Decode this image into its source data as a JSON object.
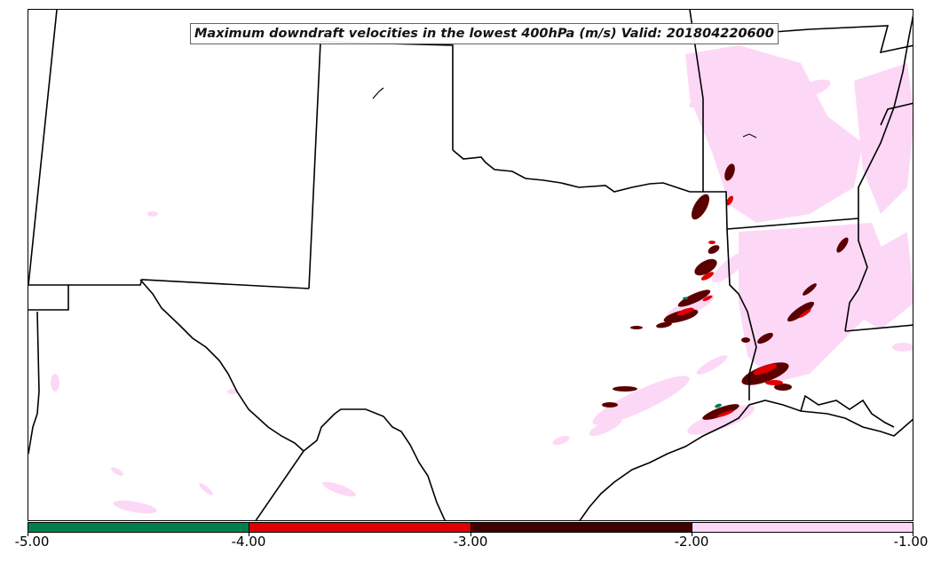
{
  "title": "Maximum downdraft velocities in the lowest 400hPa (m/s) Valid: 201804220600",
  "colorbar": {
    "colors": [
      "#007f4e",
      "#e00000",
      "#400000",
      "#fcd8f6"
    ],
    "tick_labels": [
      "-5.00",
      "-4.00",
      "-3.00",
      "-2.00",
      "-1.00"
    ]
  },
  "layers": {
    "state_border_color": "#000000",
    "coast_color": "#000000",
    "light_fill": "#fcd8f6",
    "dark_fill": "#5a0000",
    "mid_fill": "#e00000",
    "strong_fill": "#007f4e"
  }
}
